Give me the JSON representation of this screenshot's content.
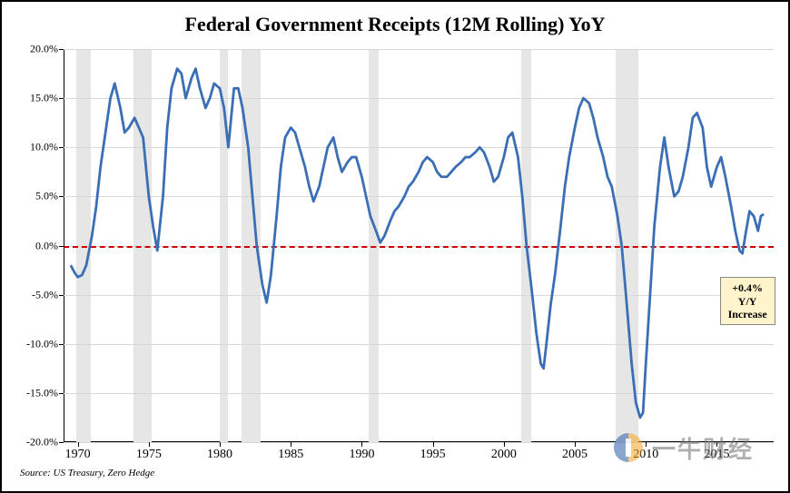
{
  "chart": {
    "type": "line",
    "title": "Federal Government Receipts (12M Rolling) YoY",
    "title_fontsize": 22,
    "source": "Source: US Treasury, Zero Hedge",
    "background_color": "#ffffff",
    "border_color": "#000000",
    "x_axis": {
      "range": [
        1969,
        2019
      ],
      "ticks": [
        1970,
        1975,
        1980,
        1985,
        1990,
        1995,
        2000,
        2005,
        2010,
        2015
      ],
      "label_fontsize": 14
    },
    "y_axis": {
      "range": [
        -20,
        20
      ],
      "ticks": [
        -20,
        -15,
        -10,
        -5,
        0,
        5,
        10,
        15,
        20
      ],
      "format": "percent",
      "label_fontsize": 12
    },
    "gridline_color": "#d8d8d8",
    "recession_shading": {
      "color": "#e6e6e6",
      "bands": [
        [
          1969.9,
          1970.9
        ],
        [
          1973.9,
          1975.2
        ],
        [
          1980.0,
          1980.6
        ],
        [
          1981.5,
          1982.9
        ],
        [
          1990.5,
          1991.2
        ],
        [
          2001.2,
          2001.9
        ],
        [
          2007.9,
          2009.5
        ]
      ]
    },
    "reference_line": {
      "y": 0,
      "color": "#cc0000",
      "dash": "4,4",
      "width": 2
    },
    "series": {
      "color": "#3b6fb5",
      "line_width": 2.2,
      "points": [
        [
          1969.5,
          -2.0
        ],
        [
          1969.8,
          -2.8
        ],
        [
          1970.0,
          -3.2
        ],
        [
          1970.3,
          -3.0
        ],
        [
          1970.6,
          -2.0
        ],
        [
          1971.0,
          1.0
        ],
        [
          1971.3,
          4.0
        ],
        [
          1971.6,
          8.0
        ],
        [
          1972.0,
          12.0
        ],
        [
          1972.3,
          15.0
        ],
        [
          1972.6,
          16.5
        ],
        [
          1973.0,
          14.0
        ],
        [
          1973.3,
          11.5
        ],
        [
          1973.6,
          12.0
        ],
        [
          1974.0,
          13.0
        ],
        [
          1974.3,
          12.0
        ],
        [
          1974.6,
          11.0
        ],
        [
          1975.0,
          5.0
        ],
        [
          1975.3,
          2.0
        ],
        [
          1975.6,
          -0.5
        ],
        [
          1976.0,
          5.0
        ],
        [
          1976.3,
          12.0
        ],
        [
          1976.6,
          16.0
        ],
        [
          1977.0,
          18.0
        ],
        [
          1977.3,
          17.5
        ],
        [
          1977.6,
          15.0
        ],
        [
          1978.0,
          17.0
        ],
        [
          1978.3,
          18.0
        ],
        [
          1978.6,
          16.0
        ],
        [
          1979.0,
          14.0
        ],
        [
          1979.3,
          15.0
        ],
        [
          1979.6,
          16.5
        ],
        [
          1980.0,
          16.0
        ],
        [
          1980.3,
          14.0
        ],
        [
          1980.6,
          10.0
        ],
        [
          1980.8,
          13.0
        ],
        [
          1981.0,
          16.0
        ],
        [
          1981.3,
          16.0
        ],
        [
          1981.6,
          14.0
        ],
        [
          1982.0,
          10.0
        ],
        [
          1982.3,
          5.0
        ],
        [
          1982.6,
          0.0
        ],
        [
          1983.0,
          -4.0
        ],
        [
          1983.3,
          -5.8
        ],
        [
          1983.6,
          -3.0
        ],
        [
          1984.0,
          3.0
        ],
        [
          1984.3,
          8.0
        ],
        [
          1984.6,
          11.0
        ],
        [
          1985.0,
          12.0
        ],
        [
          1985.3,
          11.5
        ],
        [
          1985.6,
          10.0
        ],
        [
          1986.0,
          8.0
        ],
        [
          1986.3,
          6.0
        ],
        [
          1986.6,
          4.5
        ],
        [
          1987.0,
          6.0
        ],
        [
          1987.3,
          8.0
        ],
        [
          1987.6,
          10.0
        ],
        [
          1988.0,
          11.0
        ],
        [
          1988.3,
          9.0
        ],
        [
          1988.6,
          7.5
        ],
        [
          1989.0,
          8.5
        ],
        [
          1989.3,
          9.0
        ],
        [
          1989.6,
          9.0
        ],
        [
          1990.0,
          7.0
        ],
        [
          1990.3,
          5.0
        ],
        [
          1990.6,
          3.0
        ],
        [
          1991.0,
          1.5
        ],
        [
          1991.3,
          0.3
        ],
        [
          1991.6,
          1.0
        ],
        [
          1992.0,
          2.5
        ],
        [
          1992.3,
          3.5
        ],
        [
          1992.6,
          4.0
        ],
        [
          1993.0,
          5.0
        ],
        [
          1993.3,
          6.0
        ],
        [
          1993.6,
          6.5
        ],
        [
          1994.0,
          7.5
        ],
        [
          1994.3,
          8.5
        ],
        [
          1994.6,
          9.0
        ],
        [
          1995.0,
          8.5
        ],
        [
          1995.3,
          7.5
        ],
        [
          1995.6,
          7.0
        ],
        [
          1996.0,
          7.0
        ],
        [
          1996.3,
          7.5
        ],
        [
          1996.6,
          8.0
        ],
        [
          1997.0,
          8.5
        ],
        [
          1997.3,
          9.0
        ],
        [
          1997.6,
          9.0
        ],
        [
          1998.0,
          9.5
        ],
        [
          1998.3,
          10.0
        ],
        [
          1998.6,
          9.5
        ],
        [
          1999.0,
          8.0
        ],
        [
          1999.3,
          6.5
        ],
        [
          1999.6,
          7.0
        ],
        [
          2000.0,
          9.0
        ],
        [
          2000.3,
          11.0
        ],
        [
          2000.6,
          11.5
        ],
        [
          2001.0,
          9.0
        ],
        [
          2001.3,
          5.0
        ],
        [
          2001.6,
          0.0
        ],
        [
          2002.0,
          -5.0
        ],
        [
          2002.3,
          -9.0
        ],
        [
          2002.6,
          -12.0
        ],
        [
          2002.8,
          -12.5
        ],
        [
          2003.0,
          -10.0
        ],
        [
          2003.3,
          -6.0
        ],
        [
          2003.6,
          -3.0
        ],
        [
          2004.0,
          2.0
        ],
        [
          2004.3,
          6.0
        ],
        [
          2004.6,
          9.0
        ],
        [
          2005.0,
          12.0
        ],
        [
          2005.3,
          14.0
        ],
        [
          2005.6,
          15.0
        ],
        [
          2006.0,
          14.5
        ],
        [
          2006.3,
          13.0
        ],
        [
          2006.6,
          11.0
        ],
        [
          2007.0,
          9.0
        ],
        [
          2007.3,
          7.0
        ],
        [
          2007.6,
          6.0
        ],
        [
          2008.0,
          3.0
        ],
        [
          2008.3,
          0.0
        ],
        [
          2008.6,
          -5.0
        ],
        [
          2009.0,
          -12.0
        ],
        [
          2009.3,
          -16.0
        ],
        [
          2009.6,
          -17.5
        ],
        [
          2009.8,
          -17.0
        ],
        [
          2010.0,
          -12.0
        ],
        [
          2010.3,
          -5.0
        ],
        [
          2010.6,
          2.0
        ],
        [
          2011.0,
          8.0
        ],
        [
          2011.3,
          11.0
        ],
        [
          2011.6,
          8.0
        ],
        [
          2012.0,
          5.0
        ],
        [
          2012.3,
          5.5
        ],
        [
          2012.6,
          7.0
        ],
        [
          2013.0,
          10.0
        ],
        [
          2013.3,
          13.0
        ],
        [
          2013.6,
          13.5
        ],
        [
          2014.0,
          12.0
        ],
        [
          2014.3,
          8.0
        ],
        [
          2014.6,
          6.0
        ],
        [
          2015.0,
          8.0
        ],
        [
          2015.3,
          9.0
        ],
        [
          2015.6,
          7.0
        ],
        [
          2016.0,
          4.0
        ],
        [
          2016.3,
          1.5
        ],
        [
          2016.6,
          -0.5
        ],
        [
          2016.8,
          -0.8
        ],
        [
          2017.0,
          1.0
        ],
        [
          2017.3,
          3.5
        ],
        [
          2017.6,
          3.0
        ],
        [
          2017.9,
          1.5
        ],
        [
          2018.1,
          3.0
        ],
        [
          2018.3,
          3.2
        ]
      ]
    },
    "callout": {
      "line1": "+0.4% Y/Y",
      "line2": "Increase",
      "background": "#fff4cc",
      "border": "#888888",
      "fontsize": 12,
      "position_year": 2015.2,
      "position_pct": -3.2
    },
    "watermark": {
      "text": "一牛财经",
      "text_color": "#6e6e6e",
      "logo_colors": {
        "left": "#2b5fa8",
        "right": "#f5a623"
      }
    }
  }
}
